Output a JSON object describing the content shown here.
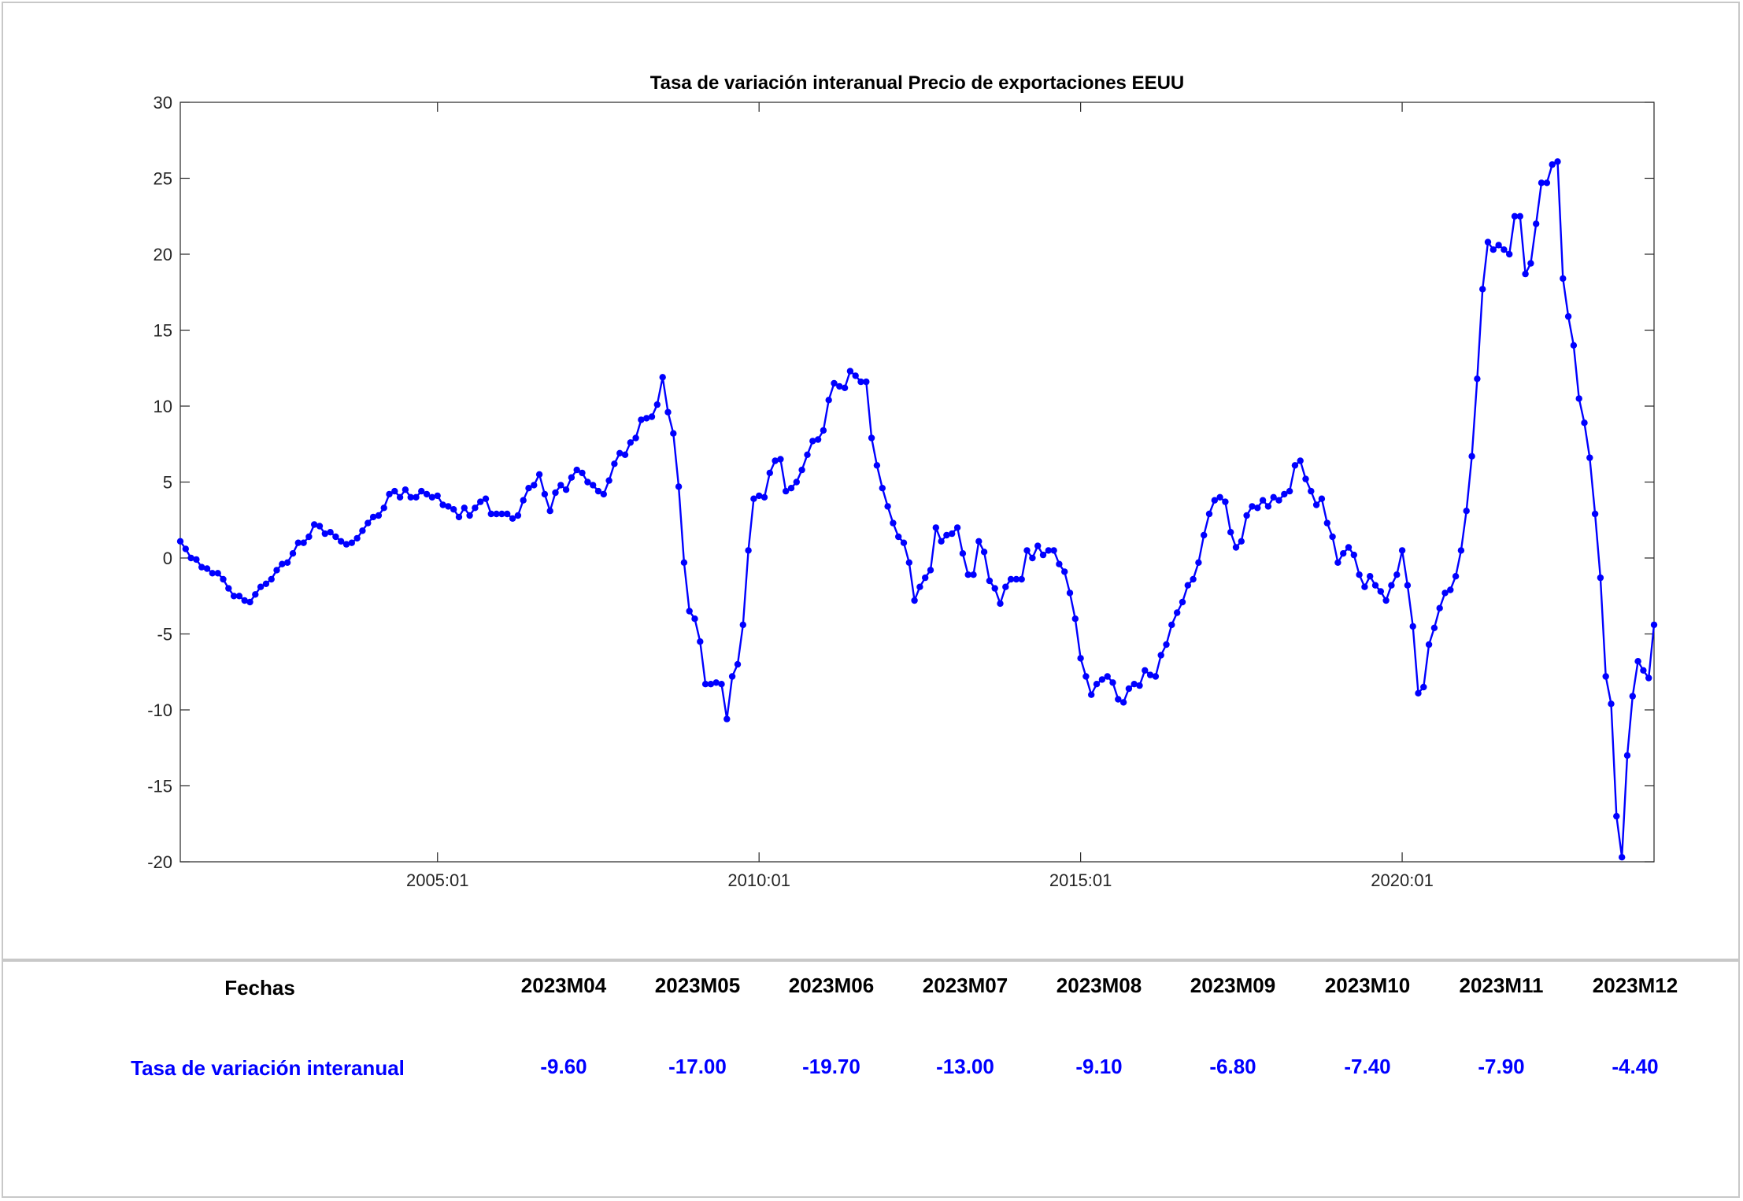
{
  "chart_data": {
    "type": "line",
    "title": "Tasa de variación interanual Precio de exportaciones EEUU",
    "xlabel": "",
    "ylabel": "",
    "x_range": [
      "2001-01",
      "2023-12"
    ],
    "ylim": [
      -20,
      30
    ],
    "yticks": [
      30,
      25,
      20,
      15,
      10,
      5,
      0,
      -5,
      -10,
      -15,
      -20
    ],
    "xticks": [
      {
        "date": "2005-01",
        "label": "2005:01"
      },
      {
        "date": "2010-01",
        "label": "2010:01"
      },
      {
        "date": "2015-01",
        "label": "2015:01"
      },
      {
        "date": "2020-01",
        "label": "2020:01"
      }
    ],
    "grid": false,
    "series": [
      {
        "color": "#0000ff",
        "marker": "circle",
        "start": "2001-01",
        "frequency": "monthly",
        "values": [
          1.1,
          0.6,
          0.0,
          -0.1,
          -0.6,
          -0.7,
          -1.0,
          -1.0,
          -1.4,
          -2.0,
          -2.5,
          -2.5,
          -2.8,
          -2.9,
          -2.4,
          -1.9,
          -1.7,
          -1.4,
          -0.8,
          -0.4,
          -0.3,
          0.3,
          1.0,
          1.0,
          1.4,
          2.2,
          2.1,
          1.6,
          1.7,
          1.4,
          1.1,
          0.9,
          1.0,
          1.3,
          1.8,
          2.3,
          2.7,
          2.8,
          3.3,
          4.2,
          4.4,
          4.0,
          4.5,
          4.0,
          4.0,
          4.4,
          4.2,
          4.0,
          4.1,
          3.5,
          3.4,
          3.2,
          2.7,
          3.3,
          2.8,
          3.3,
          3.7,
          3.9,
          2.9,
          2.9,
          2.9,
          2.9,
          2.6,
          2.8,
          3.8,
          4.6,
          4.8,
          5.5,
          4.2,
          3.1,
          4.3,
          4.8,
          4.5,
          5.3,
          5.8,
          5.6,
          5.0,
          4.8,
          4.4,
          4.2,
          5.1,
          6.2,
          6.9,
          6.8,
          7.6,
          7.9,
          9.1,
          9.2,
          9.3,
          10.1,
          11.9,
          9.6,
          8.2,
          4.7,
          -0.3,
          -3.5,
          -4.0,
          -5.5,
          -8.3,
          -8.3,
          -8.2,
          -8.3,
          -10.6,
          -7.8,
          -7.0,
          -4.4,
          0.5,
          3.9,
          4.1,
          4.0,
          5.6,
          6.4,
          6.5,
          4.4,
          4.6,
          5.0,
          5.8,
          6.8,
          7.7,
          7.8,
          8.4,
          10.4,
          11.5,
          11.3,
          11.2,
          12.3,
          12.0,
          11.6,
          11.6,
          7.9,
          6.1,
          4.6,
          3.4,
          2.3,
          1.4,
          1.0,
          -0.3,
          -2.8,
          -1.9,
          -1.3,
          -0.8,
          2.0,
          1.1,
          1.5,
          1.6,
          2.0,
          0.3,
          -1.1,
          -1.1,
          1.1,
          0.4,
          -1.5,
          -2.0,
          -3.0,
          -1.9,
          -1.4,
          -1.4,
          -1.4,
          0.5,
          0.0,
          0.8,
          0.2,
          0.5,
          0.5,
          -0.4,
          -0.9,
          -2.3,
          -4.0,
          -6.6,
          -7.8,
          -9.0,
          -8.3,
          -8.0,
          -7.8,
          -8.2,
          -9.3,
          -9.5,
          -8.6,
          -8.3,
          -8.4,
          -7.4,
          -7.7,
          -7.8,
          -6.4,
          -5.7,
          -4.4,
          -3.6,
          -2.9,
          -1.8,
          -1.4,
          -0.3,
          1.5,
          2.9,
          3.8,
          4.0,
          3.7,
          1.7,
          0.7,
          1.1,
          2.8,
          3.4,
          3.3,
          3.8,
          3.4,
          4.0,
          3.8,
          4.2,
          4.4,
          6.1,
          6.4,
          5.2,
          4.4,
          3.5,
          3.9,
          2.3,
          1.4,
          -0.3,
          0.3,
          0.7,
          0.2,
          -1.1,
          -1.9,
          -1.2,
          -1.8,
          -2.2,
          -2.8,
          -1.8,
          -1.1,
          0.5,
          -1.8,
          -4.5,
          -8.9,
          -8.5,
          -5.7,
          -4.6,
          -3.3,
          -2.3,
          -2.1,
          -1.2,
          0.5,
          3.1,
          6.7,
          11.8,
          17.7,
          20.8,
          20.3,
          20.6,
          20.3,
          20.0,
          22.5,
          22.5,
          18.7,
          19.4,
          22.0,
          24.7,
          24.7,
          25.9,
          26.1,
          18.4,
          15.9,
          14.0,
          10.5,
          8.9,
          6.6,
          2.9,
          -1.3,
          -7.8,
          -9.6,
          -17.0,
          -19.7,
          -13.0,
          -9.1,
          -6.8,
          -7.4,
          -7.9,
          -4.4
        ]
      }
    ]
  },
  "table": {
    "header_label": "Fechas",
    "row_label": "Tasa de variación interanual",
    "dates": [
      "2023M04",
      "2023M05",
      "2023M06",
      "2023M07",
      "2023M08",
      "2023M09",
      "2023M10",
      "2023M11",
      "2023M12"
    ],
    "values": [
      "-9.60",
      "-17.00",
      "-19.70",
      "-13.00",
      "-9.10",
      "-6.80",
      "-7.40",
      "-7.90",
      "-4.40"
    ],
    "label_color": "#0000ff"
  }
}
